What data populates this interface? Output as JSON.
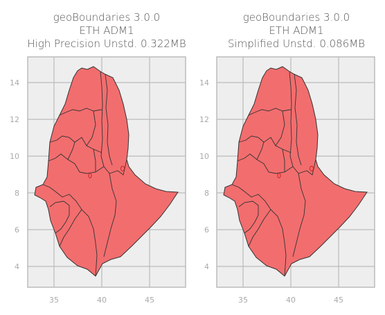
{
  "panels": [
    {
      "title": [
        "geoBoundaries 3.0.0",
        "ETH ADM1",
        "High Precision Unstd. 0.322MB"
      ],
      "x_ticks": [
        "35",
        "40",
        "45"
      ],
      "y_ticks": [
        "14",
        "12",
        "10",
        "8",
        "6",
        "4"
      ]
    },
    {
      "title": [
        "geoBoundaries 3.0.0",
        "ETH ADM1",
        "Simplified Unstd. 0.086MB"
      ],
      "x_ticks": [
        "35",
        "40",
        "45"
      ],
      "y_ticks": [
        "14",
        "12",
        "10",
        "8",
        "6",
        "4"
      ]
    }
  ],
  "colors": {
    "region_fill": "#f26d6e",
    "border": "#333333",
    "plot_bg": "#eeeeee",
    "grid": "#bbbbbb"
  }
}
